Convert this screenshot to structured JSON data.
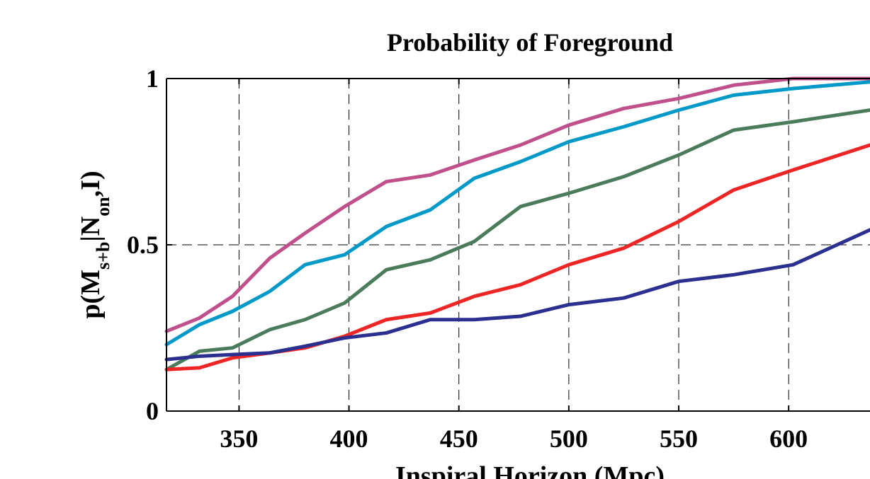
{
  "chart_data": {
    "type": "line",
    "title": "Probability of Foreground",
    "xlabel": "Inspiral Horizon (Mpc)",
    "ylabel": {
      "prefix": "p(M",
      "sub1": "s+b",
      "mid": "|N",
      "sub2": "on",
      "suffix": ",I)"
    },
    "xlim": [
      317,
      637
    ],
    "ylim": [
      0,
      1
    ],
    "x_ticks": [
      350,
      400,
      450,
      500,
      550,
      600
    ],
    "x_tick_labels": [
      "350",
      "400",
      "450",
      "500",
      "550",
      "600"
    ],
    "y_ticks": [
      0,
      0.5,
      1
    ],
    "y_tick_labels": [
      "0",
      "0.5",
      "1"
    ],
    "grid": true,
    "x": [
      317,
      332,
      347,
      364,
      380,
      398,
      417,
      437,
      457,
      478,
      500,
      525,
      550,
      575,
      602,
      637
    ],
    "series": [
      {
        "color": "#c0508c",
        "values": [
          0.24,
          0.28,
          0.345,
          0.46,
          0.535,
          0.615,
          0.69,
          0.71,
          0.755,
          0.8,
          0.86,
          0.91,
          0.94,
          0.98,
          1.0,
          1.0
        ]
      },
      {
        "color": "#0099c8",
        "values": [
          0.2,
          0.26,
          0.3,
          0.36,
          0.44,
          0.47,
          0.555,
          0.605,
          0.7,
          0.75,
          0.81,
          0.855,
          0.905,
          0.95,
          0.97,
          0.99
        ]
      },
      {
        "color": "#4a7c5c",
        "values": [
          0.125,
          0.18,
          0.19,
          0.245,
          0.275,
          0.325,
          0.425,
          0.455,
          0.51,
          0.615,
          0.655,
          0.705,
          0.77,
          0.845,
          0.87,
          0.905
        ]
      },
      {
        "color": "#ee2525",
        "values": [
          0.125,
          0.13,
          0.16,
          0.175,
          0.19,
          0.225,
          0.275,
          0.295,
          0.345,
          0.38,
          0.44,
          0.49,
          0.57,
          0.665,
          0.725,
          0.8
        ]
      },
      {
        "color": "#2b2f8f",
        "values": [
          0.155,
          0.165,
          0.17,
          0.175,
          0.195,
          0.22,
          0.235,
          0.275,
          0.275,
          0.285,
          0.32,
          0.34,
          0.39,
          0.41,
          0.44,
          0.545
        ]
      }
    ]
  }
}
